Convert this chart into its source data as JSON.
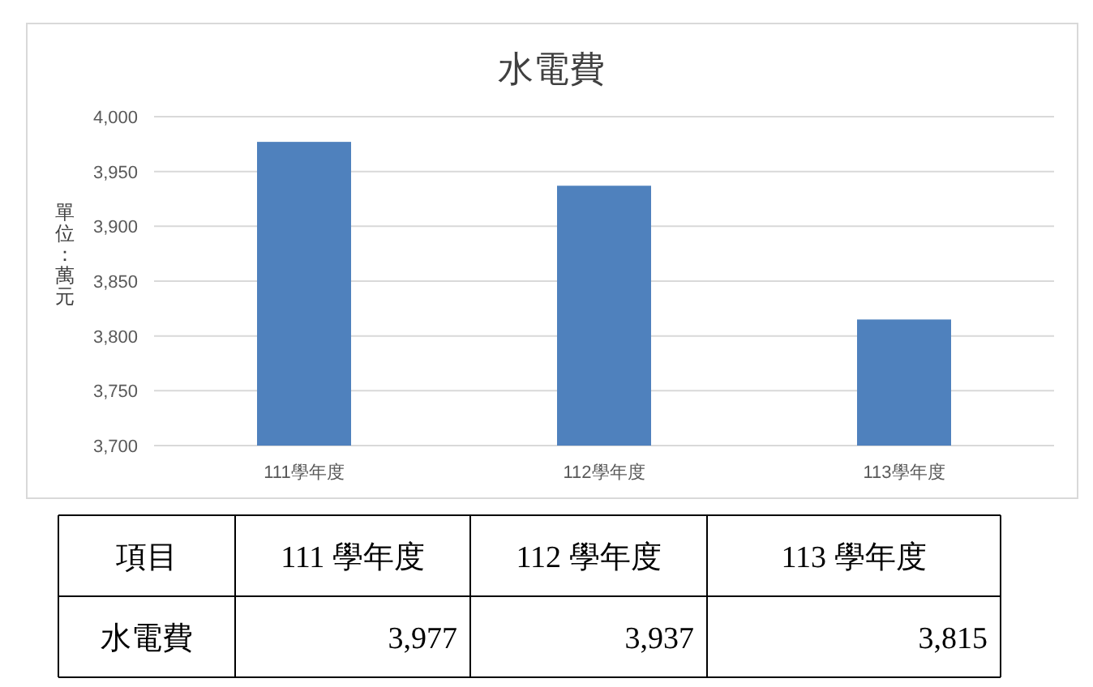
{
  "chart_data": {
    "type": "bar",
    "title": "水電費",
    "ylabel": "單位：萬元",
    "categories": [
      "111學年度",
      "112學年度",
      "113學年度"
    ],
    "values": [
      3977,
      3937,
      3815
    ],
    "color": "#4f81bd",
    "ylim": [
      3700,
      4000
    ],
    "yticks": [
      {
        "value": 3700,
        "label": "3,700"
      },
      {
        "value": 3750,
        "label": "3,750"
      },
      {
        "value": 3800,
        "label": "3,800"
      },
      {
        "value": 3850,
        "label": "3,850"
      },
      {
        "value": 3900,
        "label": "3,900"
      },
      {
        "value": 3950,
        "label": "3,950"
      },
      {
        "value": 4000,
        "label": "4,000"
      }
    ],
    "grid": "y",
    "value_labels": [
      "3,977",
      "3,937",
      "3,815"
    ],
    "annotations": [
      "項目",
      "111 學年度",
      "112 學年度",
      "113 學年度",
      "水電費"
    ]
  }
}
